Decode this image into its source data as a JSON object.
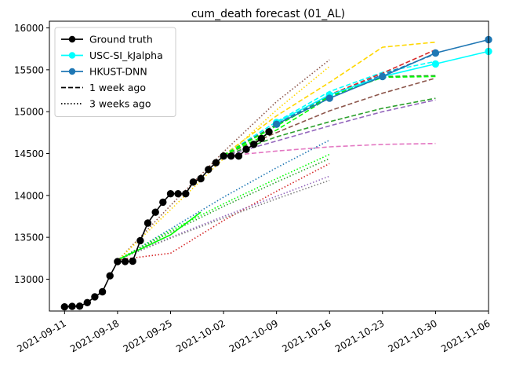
{
  "chart_data": {
    "type": "line",
    "title": "cum_death forecast (01_AL)",
    "xlabel": "",
    "ylabel": "",
    "x_axis": {
      "type": "date",
      "range": [
        "2021-09-09",
        "2021-11-06"
      ],
      "ticks": [
        "2021-09-11",
        "2021-09-18",
        "2021-09-25",
        "2021-10-02",
        "2021-10-09",
        "2021-10-16",
        "2021-10-23",
        "2021-10-30",
        "2021-11-06"
      ]
    },
    "y_axis": {
      "range": [
        12620,
        16080
      ],
      "ticks": [
        13000,
        13500,
        14000,
        14500,
        15000,
        15500,
        16000
      ]
    },
    "grid": false,
    "legend": {
      "placement": "top-left",
      "entries": [
        {
          "label": "Ground truth",
          "color": "#000000",
          "style": "solid",
          "marker": "circle"
        },
        {
          "label": "USC-SI_kJalpha",
          "color": "#00ffff",
          "style": "solid",
          "marker": "circle"
        },
        {
          "label": "HKUST-DNN",
          "color": "#1f77b4",
          "style": "solid",
          "marker": "circle"
        },
        {
          "label": "1 week ago",
          "color": "#000000",
          "style": "dashed",
          "marker": "none"
        },
        {
          "label": "3 weeks ago",
          "color": "#000000",
          "style": "dotted",
          "marker": "none"
        }
      ]
    },
    "series": [
      {
        "name": "Ground truth",
        "color": "#000000",
        "style": "solid",
        "marker": "circle",
        "points": [
          [
            "2021-09-11",
            12670
          ],
          [
            "2021-09-12",
            12675
          ],
          [
            "2021-09-13",
            12678
          ],
          [
            "2021-09-14",
            12720
          ],
          [
            "2021-09-15",
            12790
          ],
          [
            "2021-09-16",
            12850
          ],
          [
            "2021-09-17",
            13040
          ],
          [
            "2021-09-18",
            13210
          ],
          [
            "2021-09-19",
            13212
          ],
          [
            "2021-09-20",
            13215
          ],
          [
            "2021-09-21",
            13460
          ],
          [
            "2021-09-22",
            13670
          ],
          [
            "2021-09-23",
            13800
          ],
          [
            "2021-09-24",
            13920
          ],
          [
            "2021-09-25",
            14020
          ],
          [
            "2021-09-26",
            14020
          ],
          [
            "2021-09-27",
            14020
          ],
          [
            "2021-09-28",
            14160
          ],
          [
            "2021-09-29",
            14200
          ],
          [
            "2021-09-30",
            14310
          ],
          [
            "2021-10-01",
            14390
          ],
          [
            "2021-10-02",
            14470
          ],
          [
            "2021-10-03",
            14470
          ],
          [
            "2021-10-04",
            14470
          ],
          [
            "2021-10-05",
            14550
          ],
          [
            "2021-10-06",
            14610
          ],
          [
            "2021-10-07",
            14680
          ],
          [
            "2021-10-08",
            14760
          ]
        ]
      },
      {
        "name": "USC-SI_kJalpha",
        "color": "#00ffff",
        "style": "solid",
        "marker": "circle",
        "points": [
          [
            "2021-10-09",
            14870
          ],
          [
            "2021-10-16",
            15200
          ],
          [
            "2021-10-23",
            15420
          ],
          [
            "2021-10-30",
            15570
          ],
          [
            "2021-11-06",
            15720
          ]
        ]
      },
      {
        "name": "HKUST-DNN",
        "color": "#1f77b4",
        "style": "solid",
        "marker": "circle",
        "points": [
          [
            "2021-10-09",
            14850
          ],
          [
            "2021-10-16",
            15160
          ],
          [
            "2021-10-23",
            15420
          ],
          [
            "2021-10-30",
            15700
          ],
          [
            "2021-11-06",
            15860
          ]
        ]
      },
      {
        "color": "#ffd700",
        "style": "dashed",
        "marker": "none",
        "points": [
          [
            "2021-10-02",
            14480
          ],
          [
            "2021-10-09",
            14950
          ],
          [
            "2021-10-16",
            15350
          ],
          [
            "2021-10-23",
            15770
          ],
          [
            "2021-10-30",
            15830
          ]
        ]
      },
      {
        "color": "#00ffff",
        "style": "dashed",
        "marker": "none",
        "points": [
          [
            "2021-10-02",
            14480
          ],
          [
            "2021-10-09",
            14880
          ],
          [
            "2021-10-16",
            15240
          ],
          [
            "2021-10-23",
            15470
          ],
          [
            "2021-10-30",
            15600
          ]
        ]
      },
      {
        "color": "#d62728",
        "style": "dashed",
        "marker": "none",
        "points": [
          [
            "2021-10-02",
            14480
          ],
          [
            "2021-10-09",
            14850
          ],
          [
            "2021-10-16",
            15200
          ],
          [
            "2021-10-23",
            15460
          ],
          [
            "2021-10-30",
            15740
          ]
        ]
      },
      {
        "color": "#1f77b4",
        "style": "dashed",
        "marker": "none",
        "points": [
          [
            "2021-10-02",
            14480
          ],
          [
            "2021-10-09",
            14850
          ],
          [
            "2021-10-16",
            15190
          ],
          [
            "2021-10-23",
            15440
          ],
          [
            "2021-10-30",
            15690
          ]
        ]
      },
      {
        "color": "#2ca02c",
        "style": "dashed",
        "marker": "none",
        "points": [
          [
            "2021-10-02",
            14480
          ],
          [
            "2021-10-09",
            14840
          ],
          [
            "2021-10-16",
            15170
          ],
          [
            "2021-10-23",
            15420
          ],
          [
            "2021-10-30",
            15430
          ]
        ]
      },
      {
        "color": "#00ff00",
        "style": "dashed",
        "marker": "none",
        "points": [
          [
            "2021-10-02",
            14480
          ],
          [
            "2021-10-09",
            14830
          ],
          [
            "2021-10-16",
            15180
          ],
          [
            "2021-10-23",
            15410
          ],
          [
            "2021-10-30",
            15420
          ]
        ]
      },
      {
        "color": "#8c564b",
        "style": "dashed",
        "marker": "none",
        "points": [
          [
            "2021-10-02",
            14480
          ],
          [
            "2021-10-09",
            14750
          ],
          [
            "2021-10-16",
            15010
          ],
          [
            "2021-10-23",
            15220
          ],
          [
            "2021-10-30",
            15400
          ]
        ]
      },
      {
        "color": "#2ca02c",
        "style": "dashed",
        "marker": "none",
        "points": [
          [
            "2021-10-02",
            14470
          ],
          [
            "2021-10-09",
            14700
          ],
          [
            "2021-10-16",
            14880
          ],
          [
            "2021-10-23",
            15040
          ],
          [
            "2021-10-30",
            15160
          ]
        ]
      },
      {
        "color": "#9467bd",
        "style": "dashed",
        "marker": "none",
        "points": [
          [
            "2021-10-02",
            14470
          ],
          [
            "2021-10-09",
            14650
          ],
          [
            "2021-10-16",
            14830
          ],
          [
            "2021-10-23",
            15000
          ],
          [
            "2021-10-30",
            15140
          ]
        ]
      },
      {
        "color": "#e377c2",
        "style": "dashed",
        "marker": "none",
        "points": [
          [
            "2021-10-02",
            14470
          ],
          [
            "2021-10-09",
            14530
          ],
          [
            "2021-10-16",
            14580
          ],
          [
            "2021-10-23",
            14610
          ],
          [
            "2021-10-30",
            14620
          ]
        ]
      },
      {
        "color": "#8c564b",
        "style": "dotted",
        "marker": "none",
        "points": [
          [
            "2021-09-18",
            13220
          ],
          [
            "2021-09-25",
            13880
          ],
          [
            "2021-10-02",
            14520
          ],
          [
            "2021-10-09",
            15120
          ],
          [
            "2021-10-16",
            15620
          ]
        ]
      },
      {
        "color": "#ffd700",
        "style": "dotted",
        "marker": "none",
        "points": [
          [
            "2021-09-18",
            13220
          ],
          [
            "2021-09-25",
            13830
          ],
          [
            "2021-10-02",
            14440
          ],
          [
            "2021-10-09",
            15020
          ],
          [
            "2021-10-16",
            15540
          ]
        ]
      },
      {
        "color": "#1f77b4",
        "style": "dotted",
        "marker": "none",
        "points": [
          [
            "2021-09-18",
            13220
          ],
          [
            "2021-09-25",
            13600
          ],
          [
            "2021-10-02",
            13980
          ],
          [
            "2021-10-09",
            14330
          ],
          [
            "2021-10-16",
            14660
          ]
        ]
      },
      {
        "color": "#00ff00",
        "style": "dotted",
        "marker": "none",
        "points": [
          [
            "2021-09-18",
            13230
          ],
          [
            "2021-09-25",
            13580
          ],
          [
            "2021-10-02",
            13900
          ],
          [
            "2021-10-09",
            14200
          ],
          [
            "2021-10-16",
            14490
          ]
        ]
      },
      {
        "color": "#2ca02c",
        "style": "dotted",
        "marker": "none",
        "points": [
          [
            "2021-09-18",
            13230
          ],
          [
            "2021-09-25",
            13560
          ],
          [
            "2021-10-02",
            13870
          ],
          [
            "2021-10-09",
            14160
          ],
          [
            "2021-10-16",
            14440
          ]
        ]
      },
      {
        "color": "#d62728",
        "style": "dotted",
        "marker": "none",
        "points": [
          [
            "2021-09-18",
            13230
          ],
          [
            "2021-09-25",
            13310
          ],
          [
            "2021-10-02",
            13700
          ],
          [
            "2021-10-09",
            14050
          ],
          [
            "2021-10-16",
            14380
          ]
        ]
      },
      {
        "color": "#9467bd",
        "style": "dotted",
        "marker": "none",
        "points": [
          [
            "2021-09-18",
            13230
          ],
          [
            "2021-09-25",
            13500
          ],
          [
            "2021-10-02",
            13750
          ],
          [
            "2021-10-09",
            13990
          ],
          [
            "2021-10-16",
            14230
          ]
        ]
      },
      {
        "color": "#7f7f7f",
        "style": "dotted",
        "marker": "none",
        "points": [
          [
            "2021-09-18",
            13230
          ],
          [
            "2021-09-25",
            13490
          ],
          [
            "2021-10-02",
            13730
          ],
          [
            "2021-10-09",
            13960
          ],
          [
            "2021-10-16",
            14180
          ]
        ]
      },
      {
        "color": "#00ff00",
        "style": "solid",
        "marker": "none",
        "points": [
          [
            "2021-09-18",
            13230
          ],
          [
            "2021-09-25",
            13530
          ],
          [
            "2021-09-29",
            13800
          ]
        ]
      },
      {
        "color": "#00ff00",
        "style": "dashed",
        "marker": "none",
        "points": [
          [
            "2021-10-02",
            14480
          ],
          [
            "2021-10-09",
            14780
          ],
          [
            "2021-10-16",
            15170
          ]
        ]
      }
    ]
  }
}
